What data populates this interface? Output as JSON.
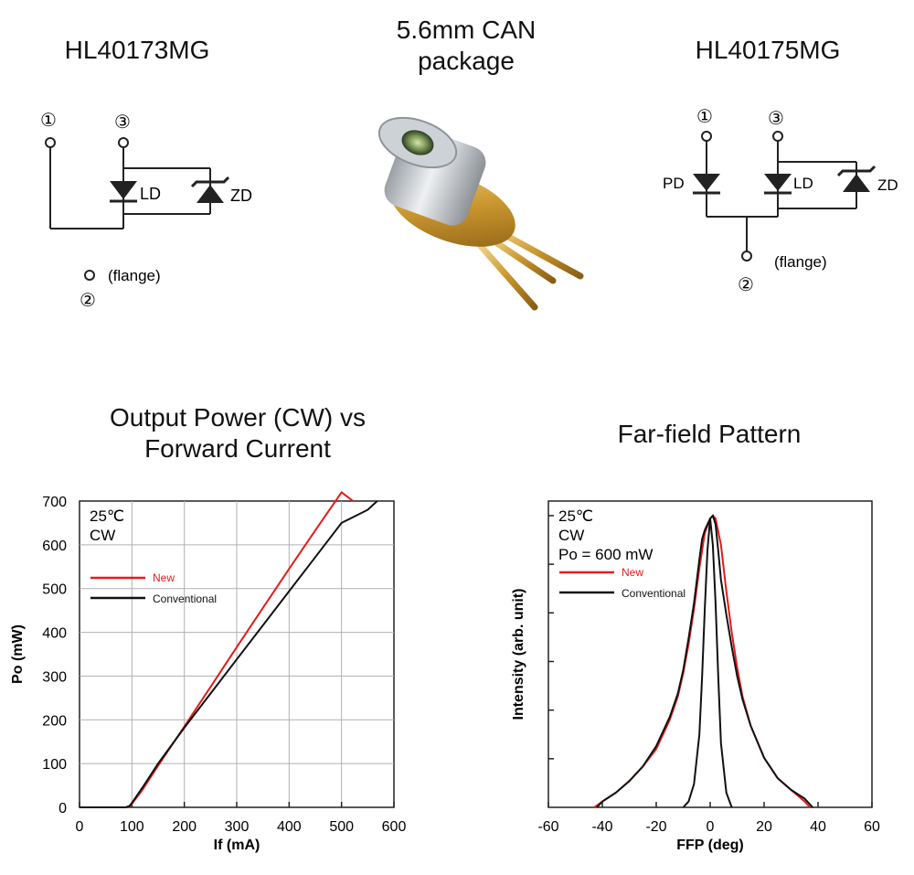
{
  "top": {
    "left_title": "HL40173MG",
    "center_title_line1": "5.6mm CAN",
    "center_title_line2": "package",
    "right_title": "HL40175MG"
  },
  "left_diagram": {
    "pin1": "①",
    "pin3": "③",
    "pin2": "②",
    "ld_label": "LD",
    "zd_label": "ZD",
    "flange_label": "(flange)"
  },
  "right_diagram": {
    "pin1": "①",
    "pin3": "③",
    "pin2": "②",
    "pd_label": "PD",
    "ld_label": "LD",
    "zd_label": "ZD",
    "flange_label": "(flange)"
  },
  "product_image": {
    "icon": "laser-diode-can-image"
  },
  "chart_data": [
    {
      "type": "line",
      "title_line1": "Output Power (CW) vs",
      "title_line2": "Forward Current",
      "xlabel": "If (mA)",
      "ylabel": "Po (mW)",
      "xlim": [
        0,
        600
      ],
      "ylim": [
        0,
        700
      ],
      "xticks": [
        "0",
        "100",
        "200",
        "300",
        "400",
        "500",
        "600"
      ],
      "yticks": [
        "0",
        "100",
        "200",
        "300",
        "400",
        "500",
        "600",
        "700"
      ],
      "grid": true,
      "annotation_line1": "25℃",
      "annotation_line2": "CW",
      "legend_position": "top-left",
      "series": [
        {
          "name": "New",
          "color": "#e31b1b",
          "x": [
            0,
            90,
            95,
            100,
            120,
            150,
            200,
            250,
            300,
            350,
            400,
            450,
            500,
            522
          ],
          "y": [
            0,
            0,
            2,
            8,
            40,
            95,
            185,
            275,
            366,
            456,
            545,
            633,
            720,
            700
          ]
        },
        {
          "name": "Conventional",
          "color": "#111111",
          "x": [
            0,
            88,
            95,
            100,
            120,
            150,
            200,
            250,
            300,
            350,
            400,
            450,
            500,
            550,
            568
          ],
          "y": [
            0,
            0,
            3,
            10,
            45,
            100,
            182,
            260,
            338,
            416,
            494,
            572,
            650,
            680,
            700
          ]
        }
      ]
    },
    {
      "type": "line",
      "title": "Far-field Pattern",
      "xlabel": "FFP (deg)",
      "ylabel": "Intensity (arb. unit)",
      "xlim": [
        -60,
        60
      ],
      "ylim": [
        0,
        1.05
      ],
      "xticks": [
        "-60",
        "-40",
        "-20",
        "0",
        "20",
        "40",
        "60"
      ],
      "grid": false,
      "annotation_line1": "25℃",
      "annotation_line2": "CW",
      "annotation_line3": "Po = 600 mW",
      "legend_position": "top-left",
      "series": [
        {
          "name": "New",
          "color": "#e31b1b",
          "x": [
            -43,
            -40,
            -35,
            -30,
            -25,
            -20,
            -15,
            -12,
            -10,
            -8,
            -6,
            -4,
            -2,
            0,
            1,
            2,
            4,
            6,
            8,
            10,
            12,
            15,
            20,
            25,
            30,
            35,
            37
          ],
          "y": [
            0.0,
            0.02,
            0.05,
            0.09,
            0.14,
            0.2,
            0.3,
            0.38,
            0.46,
            0.56,
            0.68,
            0.82,
            0.94,
            0.99,
            1.0,
            0.99,
            0.9,
            0.74,
            0.6,
            0.48,
            0.38,
            0.28,
            0.17,
            0.1,
            0.06,
            0.02,
            0.0
          ]
        },
        {
          "name": "Conventional",
          "color": "#111111",
          "x": [
            -42,
            -40,
            -35,
            -30,
            -25,
            -20,
            -15,
            -12,
            -10,
            -8,
            -6,
            -4,
            -3,
            -2,
            -1,
            0,
            1,
            2,
            3,
            4,
            6,
            8,
            10,
            12,
            15,
            20,
            25,
            30,
            35,
            38
          ],
          "y": [
            0.0,
            0.02,
            0.05,
            0.09,
            0.14,
            0.21,
            0.31,
            0.39,
            0.47,
            0.58,
            0.7,
            0.85,
            0.92,
            0.95,
            0.97,
            0.99,
            1.0,
            0.97,
            0.88,
            0.78,
            0.66,
            0.55,
            0.45,
            0.37,
            0.28,
            0.17,
            0.1,
            0.06,
            0.03,
            0.0
          ]
        },
        {
          "name": "",
          "color": "#111111",
          "x": [
            -10,
            -8,
            -6,
            -4,
            -3,
            -2,
            -1,
            0,
            1,
            2,
            3,
            4,
            6,
            8
          ],
          "y": [
            0.0,
            0.02,
            0.08,
            0.25,
            0.45,
            0.68,
            0.88,
            0.99,
            0.9,
            0.7,
            0.45,
            0.22,
            0.05,
            0.0
          ]
        }
      ]
    }
  ]
}
